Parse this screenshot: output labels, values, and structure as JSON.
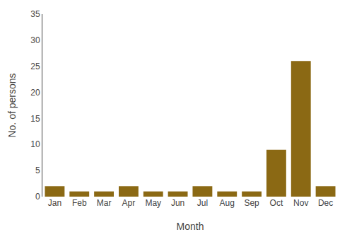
{
  "chart_data": {
    "type": "bar",
    "categories": [
      "Jan",
      "Feb",
      "Mar",
      "Apr",
      "May",
      "Jun",
      "Jul",
      "Aug",
      "Sep",
      "Oct",
      "Nov",
      "Dec"
    ],
    "values": [
      2,
      1,
      1,
      2,
      1,
      1,
      2,
      1,
      1,
      9,
      26,
      2
    ],
    "color": "#8B6914",
    "xlabel": "Month",
    "ylabel": "No. of persons",
    "ylim": [
      0,
      35
    ],
    "yticks": [
      0,
      5,
      10,
      15,
      20,
      25,
      30,
      35
    ],
    "grid": false
  }
}
